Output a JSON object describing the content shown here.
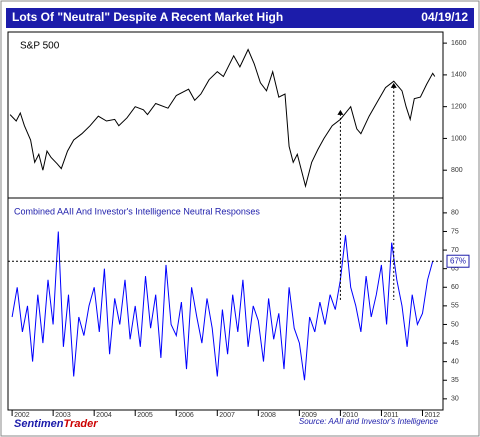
{
  "header": {
    "title": "Lots Of \"Neutral\" Despite A Recent Market High",
    "date": "04/19/12"
  },
  "footer": {
    "source": "Source: AAII and Investor's Intelligence",
    "logo": [
      "Sentimen",
      "Trader"
    ]
  },
  "chart_data": [
    {
      "type": "line",
      "title": "S&P 500",
      "xlim": [
        2001.9,
        2012.5
      ],
      "ylim": [
        625,
        1670
      ],
      "yticks": [
        800,
        1000,
        1200,
        1400,
        1600
      ],
      "x": [
        2001.95,
        2002.1,
        2002.2,
        2002.3,
        2002.45,
        2002.55,
        2002.65,
        2002.75,
        2002.85,
        2002.95,
        2003.1,
        2003.2,
        2003.35,
        2003.5,
        2003.7,
        2003.9,
        2004.1,
        2004.3,
        2004.5,
        2004.6,
        2004.8,
        2005.0,
        2005.2,
        2005.3,
        2005.5,
        2005.8,
        2006.0,
        2006.3,
        2006.45,
        2006.6,
        2006.8,
        2007.0,
        2007.15,
        2007.4,
        2007.55,
        2007.75,
        2007.9,
        2008.05,
        2008.2,
        2008.35,
        2008.5,
        2008.65,
        2008.75,
        2008.85,
        2008.95,
        2009.15,
        2009.3,
        2009.45,
        2009.6,
        2009.8,
        2010.0,
        2010.25,
        2010.4,
        2010.5,
        2010.7,
        2010.9,
        2011.1,
        2011.3,
        2011.5,
        2011.6,
        2011.7,
        2011.8,
        2011.95,
        2012.1,
        2012.25,
        2012.3
      ],
      "series": [
        {
          "name": "S&P 500",
          "color": "#000000",
          "values": [
            1150,
            1110,
            1160,
            1080,
            990,
            850,
            900,
            800,
            920,
            880,
            840,
            810,
            920,
            990,
            1030,
            1080,
            1140,
            1110,
            1120,
            1080,
            1130,
            1200,
            1180,
            1150,
            1220,
            1190,
            1270,
            1310,
            1240,
            1280,
            1370,
            1420,
            1390,
            1520,
            1450,
            1560,
            1470,
            1350,
            1300,
            1420,
            1260,
            1280,
            950,
            850,
            900,
            700,
            850,
            930,
            1000,
            1080,
            1120,
            1200,
            1060,
            1030,
            1140,
            1230,
            1320,
            1360,
            1300,
            1200,
            1120,
            1250,
            1260,
            1340,
            1410,
            1390
          ]
        }
      ],
      "markers_x": [
        2010.0,
        2011.3
      ],
      "markers_y": [
        1180,
        1350
      ]
    },
    {
      "type": "line",
      "title": "Combined AAII And Investor's Intelligence Neutral Responses",
      "xlim": [
        2001.9,
        2012.5
      ],
      "ylim": [
        27,
        84
      ],
      "xticks": [
        2002,
        2003,
        2004,
        2005,
        2006,
        2007,
        2008,
        2009,
        2010,
        2011,
        2012
      ],
      "yticks": [
        30,
        35,
        40,
        45,
        50,
        55,
        60,
        65,
        70,
        75,
        80
      ],
      "x": [
        2002.0,
        2002.125,
        2002.25,
        2002.375,
        2002.5,
        2002.625,
        2002.75,
        2002.875,
        2003.0,
        2003.125,
        2003.25,
        2003.375,
        2003.5,
        2003.625,
        2003.75,
        2003.875,
        2004.0,
        2004.125,
        2004.25,
        2004.375,
        2004.5,
        2004.625,
        2004.75,
        2004.875,
        2005.0,
        2005.125,
        2005.25,
        2005.375,
        2005.5,
        2005.625,
        2005.75,
        2005.875,
        2006.0,
        2006.125,
        2006.25,
        2006.375,
        2006.5,
        2006.625,
        2006.75,
        2006.875,
        2007.0,
        2007.125,
        2007.25,
        2007.375,
        2007.5,
        2007.625,
        2007.75,
        2007.875,
        2008.0,
        2008.125,
        2008.25,
        2008.375,
        2008.5,
        2008.625,
        2008.75,
        2008.875,
        2009.0,
        2009.125,
        2009.25,
        2009.375,
        2009.5,
        2009.625,
        2009.75,
        2009.875,
        2010.0,
        2010.125,
        2010.25,
        2010.375,
        2010.5,
        2010.625,
        2010.75,
        2010.875,
        2011.0,
        2011.125,
        2011.25,
        2011.375,
        2011.5,
        2011.625,
        2011.75,
        2011.875,
        2012.0,
        2012.125,
        2012.25
      ],
      "series": [
        {
          "name": "Neutral Responses",
          "color": "#0000ff",
          "values": [
            52,
            60,
            48,
            55,
            40,
            58,
            45,
            62,
            50,
            75,
            44,
            58,
            36,
            52,
            47,
            55,
            60,
            48,
            65,
            42,
            57,
            50,
            62,
            46,
            55,
            44,
            63,
            49,
            58,
            41,
            66,
            50,
            47,
            56,
            38,
            60,
            52,
            45,
            57,
            49,
            36,
            54,
            42,
            58,
            48,
            62,
            44,
            55,
            51,
            40,
            57,
            46,
            53,
            38,
            60,
            49,
            45,
            35,
            52,
            48,
            56,
            50,
            58,
            54,
            62,
            74,
            60,
            55,
            48,
            63,
            52,
            58,
            66,
            50,
            72,
            62,
            55,
            44,
            58,
            50,
            53,
            62,
            67
          ]
        }
      ],
      "current": {
        "value": 67,
        "label": "67%"
      }
    }
  ]
}
